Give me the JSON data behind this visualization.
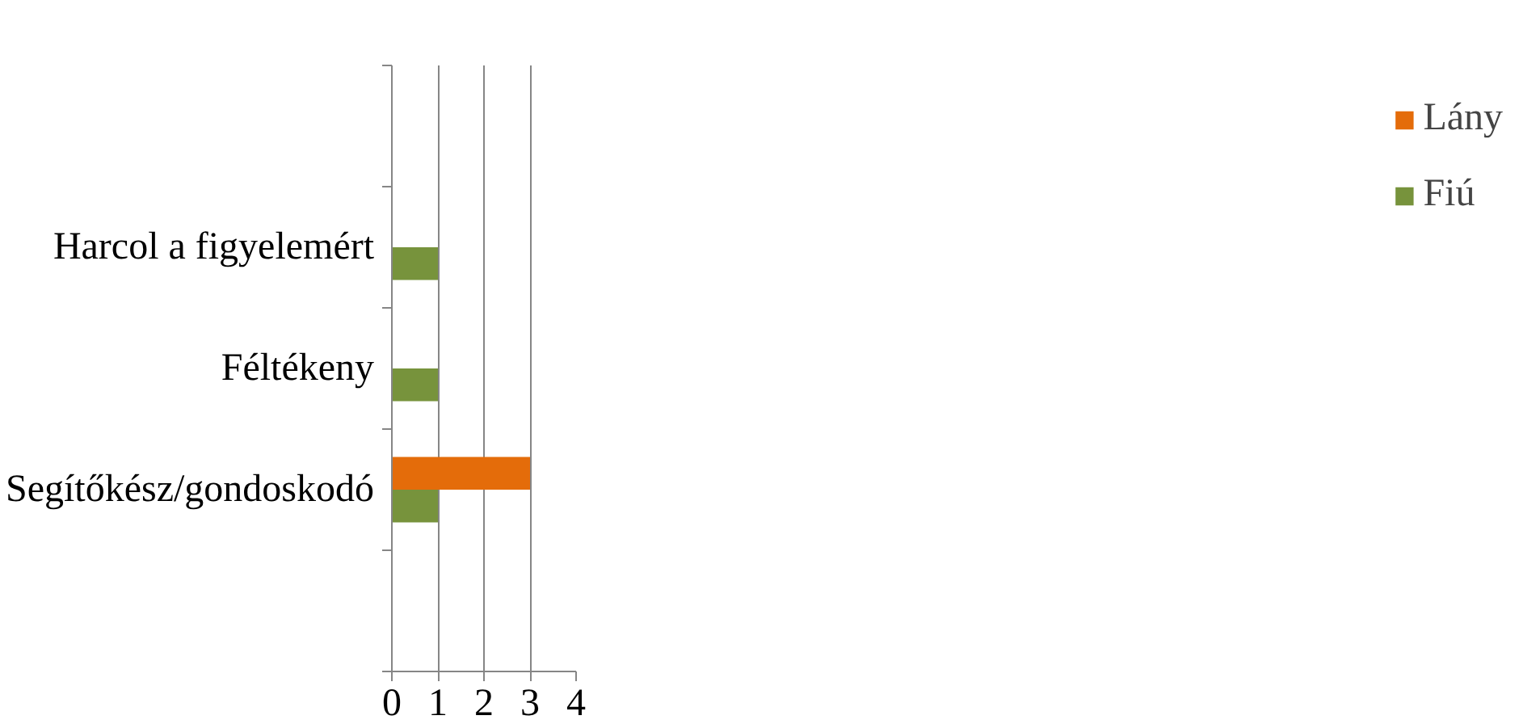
{
  "chart_data": {
    "type": "bar",
    "orientation": "horizontal",
    "categories": [
      null,
      "Harcol a figyelemért",
      "Féltékeny",
      "Segítőkész/gondoskodó",
      null
    ],
    "series": [
      {
        "name": "Lány",
        "color": "#e46c0a",
        "values": [
          null,
          null,
          null,
          3,
          null
        ]
      },
      {
        "name": "Fiú",
        "color": "#77933c",
        "values": [
          null,
          1,
          1,
          1,
          null
        ]
      }
    ],
    "xlim": [
      0,
      4
    ],
    "xticks": [
      0,
      1,
      2,
      3,
      4
    ],
    "grid": "x",
    "legend": "right"
  }
}
